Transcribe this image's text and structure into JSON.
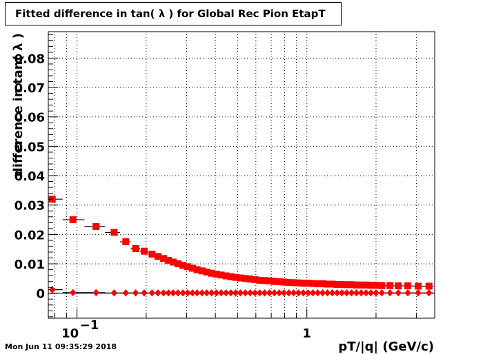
{
  "colors": {
    "frame": "#000000",
    "grid": "#000000",
    "series1": "#ff0000",
    "series2": "#ff0000"
  },
  "timestamp": "Mon Jun 11 09:35:29 2018",
  "chart_data": {
    "type": "scatter",
    "title": "Fitted difference in tan( λ ) for Global Rec Pion EtapT",
    "xlabel": "pT/|q| (GeV/c)",
    "ylabel": "difference in tan( λ )",
    "xscale": "log",
    "xlim": [
      0.075,
      3.6
    ],
    "ylim": [
      -0.0085,
      0.089
    ],
    "grid": true,
    "legend": "none",
    "x_ticks": [
      {
        "value": 0.1,
        "base": "10",
        "exp": "−1"
      },
      {
        "value": 1.0,
        "base": "1",
        "exp": ""
      }
    ],
    "y_ticks": [
      {
        "value": 0,
        "label": "0"
      },
      {
        "value": 0.01,
        "label": "0.01"
      },
      {
        "value": 0.02,
        "label": "0.02"
      },
      {
        "value": 0.03,
        "label": "0.03"
      },
      {
        "value": 0.04,
        "label": "0.04"
      },
      {
        "value": 0.05,
        "label": "0.05"
      },
      {
        "value": 0.06,
        "label": "0.06"
      },
      {
        "value": 0.07,
        "label": "0.07"
      },
      {
        "value": 0.08,
        "label": "0.08"
      }
    ],
    "series": [
      {
        "marker": "square",
        "x": [
          0.078,
          0.096,
          0.121,
          0.145,
          0.163,
          0.18,
          0.196,
          0.212,
          0.225,
          0.238,
          0.25,
          0.262,
          0.275,
          0.289,
          0.303,
          0.318,
          0.333,
          0.35,
          0.367,
          0.385,
          0.404,
          0.424,
          0.445,
          0.467,
          0.49,
          0.514,
          0.54,
          0.567,
          0.595,
          0.624,
          0.655,
          0.688,
          0.722,
          0.758,
          0.795,
          0.835,
          0.876,
          0.92,
          0.965,
          1.013,
          1.063,
          1.116,
          1.171,
          1.229,
          1.29,
          1.354,
          1.421,
          1.491,
          1.565,
          1.643,
          1.724,
          1.81,
          1.9,
          2.0,
          2.12,
          2.3,
          2.5,
          2.75,
          3.05,
          3.4
        ],
        "y": [
          0.032,
          0.025,
          0.0227,
          0.0207,
          0.0175,
          0.0152,
          0.0143,
          0.0133,
          0.0125,
          0.0118,
          0.0112,
          0.0106,
          0.01,
          0.0095,
          0.009,
          0.0085,
          0.008,
          0.0076,
          0.0072,
          0.0068,
          0.0065,
          0.0062,
          0.0059,
          0.0056,
          0.0054,
          0.0052,
          0.005,
          0.0048,
          0.0046,
          0.0044,
          0.0043,
          0.0042,
          0.004,
          0.0039,
          0.0038,
          0.0037,
          0.0036,
          0.0035,
          0.0034,
          0.0034,
          0.0033,
          0.0032,
          0.0032,
          0.0031,
          0.0031,
          0.003,
          0.003,
          0.0029,
          0.0029,
          0.0028,
          0.0028,
          0.0028,
          0.0027,
          0.0027,
          0.0026,
          0.0026,
          0.0025,
          0.0025,
          0.0024,
          0.0024
        ]
      },
      {
        "marker": "diamond",
        "x": [
          0.078,
          0.096,
          0.121,
          0.145,
          0.163,
          0.18,
          0.196,
          0.212,
          0.225,
          0.238,
          0.25,
          0.262,
          0.275,
          0.289,
          0.303,
          0.318,
          0.333,
          0.35,
          0.367,
          0.385,
          0.404,
          0.424,
          0.445,
          0.467,
          0.49,
          0.514,
          0.54,
          0.567,
          0.595,
          0.624,
          0.655,
          0.688,
          0.722,
          0.758,
          0.795,
          0.835,
          0.876,
          0.92,
          0.965,
          1.013,
          1.063,
          1.116,
          1.171,
          1.229,
          1.29,
          1.354,
          1.421,
          1.491,
          1.565,
          1.643,
          1.724,
          1.81,
          1.9,
          2.0,
          2.12,
          2.3,
          2.5,
          2.75,
          3.05,
          3.4
        ],
        "y": [
          0.0012,
          0.0002,
          0.0002,
          0.0001,
          0.0001,
          0.0001,
          0.0001,
          0.0001,
          0.0001,
          0.0001,
          0.0001,
          0.0001,
          0.0001,
          0.0001,
          0.0001,
          0.0001,
          0.0001,
          0.0001,
          0.0001,
          0.0001,
          0.0001,
          0.0001,
          0.0001,
          0.0001,
          0.0001,
          0.0001,
          0.0001,
          0.0001,
          0.0001,
          0.0001,
          0.0001,
          0.0001,
          0.0001,
          0.0001,
          0.0001,
          0.0001,
          0.0001,
          0.0001,
          0.0001,
          0.0001,
          0.0001,
          0.0001,
          0.0001,
          0.0001,
          0.0001,
          0.0001,
          0.0001,
          0.0001,
          0.0001,
          0.0001,
          0.0001,
          0.0001,
          0.0001,
          0.0001,
          0.0001,
          0.0001,
          0.0001,
          0.0001,
          0.0001,
          0.0001
        ]
      }
    ]
  }
}
